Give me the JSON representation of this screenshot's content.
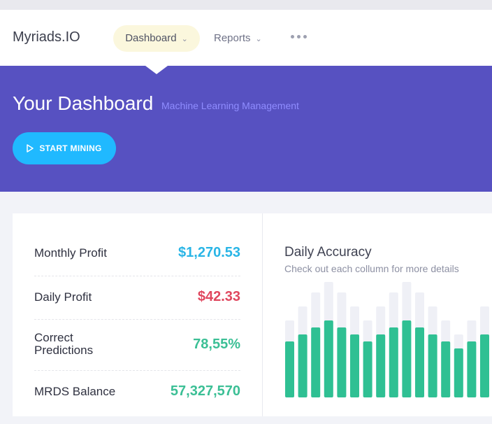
{
  "header": {
    "logo": "Myriads.IO",
    "nav": [
      {
        "label": "Dashboard",
        "active": true
      },
      {
        "label": "Reports",
        "active": false
      }
    ]
  },
  "hero": {
    "title": "Your Dashboard",
    "subtitle": "Machine Learning Management",
    "button_label": "START MINING",
    "button_icon": "play-icon"
  },
  "stats": [
    {
      "label": "Monthly Profit",
      "value": "$1,270.53",
      "color": "#29b5e6"
    },
    {
      "label": "Daily Profit",
      "value": "$42.33",
      "color": "#e0485f"
    },
    {
      "label": "Correct Predictions",
      "value": "78,55%",
      "color": "#3bbf95"
    },
    {
      "label": "MRDS Balance",
      "value": "57,327,570",
      "color": "#3bbf95"
    }
  ],
  "chart": {
    "title": "Daily Accuracy",
    "subtitle": "Check out each collumn for more details"
  },
  "chart_data": {
    "type": "bar",
    "series": [
      {
        "values": [
          80,
          90,
          100,
          110,
          100,
          90,
          80,
          90,
          100,
          110,
          100,
          90,
          80,
          70,
          80,
          90
        ]
      },
      {
        "values": [
          110,
          130,
          150,
          165,
          150,
          130,
          110,
          130,
          150,
          165,
          150,
          130,
          110,
          90,
          110,
          130
        ]
      }
    ],
    "colors": {
      "primary": "#2fc093",
      "background": "#eff0f6"
    },
    "ylim": [
      0,
      170
    ],
    "grid": false
  },
  "theme": {
    "hero_bg": "#5751c1",
    "accent": "#20b9ff"
  }
}
